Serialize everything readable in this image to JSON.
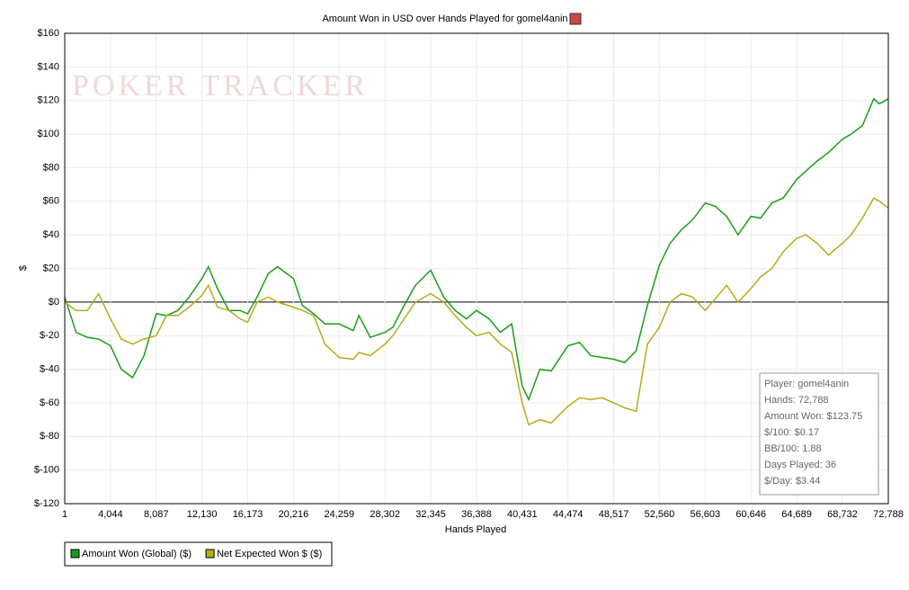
{
  "chart_data": {
    "type": "line",
    "title": "Amount Won in USD over Hands Played for gomel4anin",
    "watermark": "POKER TRACKER",
    "x_label": "Hands Played",
    "y_label": "$",
    "x": [
      1,
      1000,
      2000,
      3000,
      4044,
      5000,
      6000,
      7000,
      8087,
      9000,
      10000,
      11000,
      12130,
      12700,
      13500,
      14500,
      15500,
      16173,
      17000,
      18000,
      18800,
      20216,
      21000,
      22000,
      23000,
      24259,
      25500,
      26000,
      27000,
      28302,
      29000,
      30000,
      31000,
      32345,
      33500,
      34500,
      35500,
      36388,
      37500,
      38500,
      39500,
      40431,
      41000,
      42000,
      43000,
      44474,
      45500,
      46500,
      47500,
      48517,
      49500,
      50500,
      51500,
      52560,
      53500,
      54500,
      55500,
      56603,
      57500,
      58500,
      59500,
      60646,
      61500,
      62500,
      63500,
      64689,
      65500,
      66500,
      67500,
      68732,
      69500,
      70500,
      71500,
      72000,
      72788
    ],
    "series": [
      {
        "name": "Amount Won (Global) ($)",
        "color": "#1a9e1a",
        "values": [
          3,
          -18,
          -21,
          -22,
          -26,
          -40,
          -45,
          -32,
          -7,
          -8,
          -5,
          3,
          14,
          21,
          8,
          -5,
          -5,
          -7,
          3,
          17,
          21,
          14,
          -2,
          -7,
          -13,
          -13,
          -17,
          -8,
          -21,
          -18,
          -15,
          -2,
          10,
          19,
          3,
          -5,
          -10,
          -5,
          -10,
          -18,
          -13,
          -50,
          -58,
          -40,
          -41,
          -26,
          -24,
          -32,
          -33,
          -34,
          -36,
          -29,
          -2,
          22,
          35,
          43,
          49,
          59,
          57,
          51,
          40,
          51,
          50,
          59,
          62,
          73,
          78,
          84,
          89,
          97,
          100,
          105,
          121,
          118,
          121
        ]
      },
      {
        "name": "Net Expected Won $ ($)",
        "color": "#b5ac1a",
        "values": [
          0,
          -5,
          -5,
          5,
          -10,
          -22,
          -25,
          -22,
          -20,
          -8,
          -8,
          -3,
          4,
          10,
          -3,
          -5,
          -10,
          -12,
          0,
          3,
          0,
          -3,
          -5,
          -8,
          -25,
          -33,
          -34,
          -30,
          -32,
          -25,
          -20,
          -10,
          0,
          5,
          0,
          -8,
          -15,
          -20,
          -18,
          -25,
          -30,
          -60,
          -73,
          -70,
          -72,
          -62,
          -57,
          -58,
          -57,
          -60,
          -63,
          -65,
          -25,
          -15,
          0,
          5,
          3,
          -5,
          2,
          10,
          0,
          8,
          15,
          20,
          30,
          38,
          40,
          35,
          28,
          35,
          40,
          50,
          62,
          60,
          56
        ]
      }
    ],
    "xlim": [
      1,
      72788
    ],
    "xticks": [
      1,
      {
        "value": 4044,
        "label": "4,044"
      },
      {
        "value": 8087,
        "label": "8,087"
      },
      {
        "value": 12130,
        "label": "12,130"
      },
      {
        "value": 16173,
        "label": "16,173"
      },
      {
        "value": 20216,
        "label": "20,216"
      },
      {
        "value": 24259,
        "label": "24,259"
      },
      {
        "value": 28302,
        "label": "28,302"
      },
      {
        "value": 32345,
        "label": "32,345"
      },
      {
        "value": 36388,
        "label": "36,388"
      },
      {
        "value": 40431,
        "label": "40,431"
      },
      {
        "value": 44474,
        "label": "44,474"
      },
      {
        "value": 48517,
        "label": "48,517"
      },
      {
        "value": 52560,
        "label": "52,560"
      },
      {
        "value": 56603,
        "label": "56,603"
      },
      {
        "value": 60646,
        "label": "60,646"
      },
      {
        "value": 64689,
        "label": "64,689"
      },
      {
        "value": 68732,
        "label": "68,732"
      },
      {
        "value": 72788,
        "label": "72,788"
      }
    ],
    "ylim": [
      -120,
      160
    ],
    "yticks": [
      {
        "value": -120,
        "label": "$-120"
      },
      {
        "value": -100,
        "label": "$-100"
      },
      {
        "value": -80,
        "label": "$-80"
      },
      {
        "value": -60,
        "label": "$-60"
      },
      {
        "value": -40,
        "label": "$-40"
      },
      {
        "value": -20,
        "label": "$-20"
      },
      {
        "value": 0,
        "label": "$0"
      },
      {
        "value": 20,
        "label": "$20"
      },
      {
        "value": 40,
        "label": "$40"
      },
      {
        "value": 60,
        "label": "$60"
      },
      {
        "value": 80,
        "label": "$80"
      },
      {
        "value": 100,
        "label": "$100"
      },
      {
        "value": 120,
        "label": "$120"
      },
      {
        "value": 140,
        "label": "$140"
      },
      {
        "value": 160,
        "label": "$160"
      }
    ],
    "grid": true,
    "stats": [
      "Player: gomel4anin",
      "Hands: 72,788",
      "Amount Won: $123.75",
      "$/100: $0.17",
      "BB/100: 1.88",
      "Days Played: 36",
      "$/Day: $3.44"
    ]
  }
}
